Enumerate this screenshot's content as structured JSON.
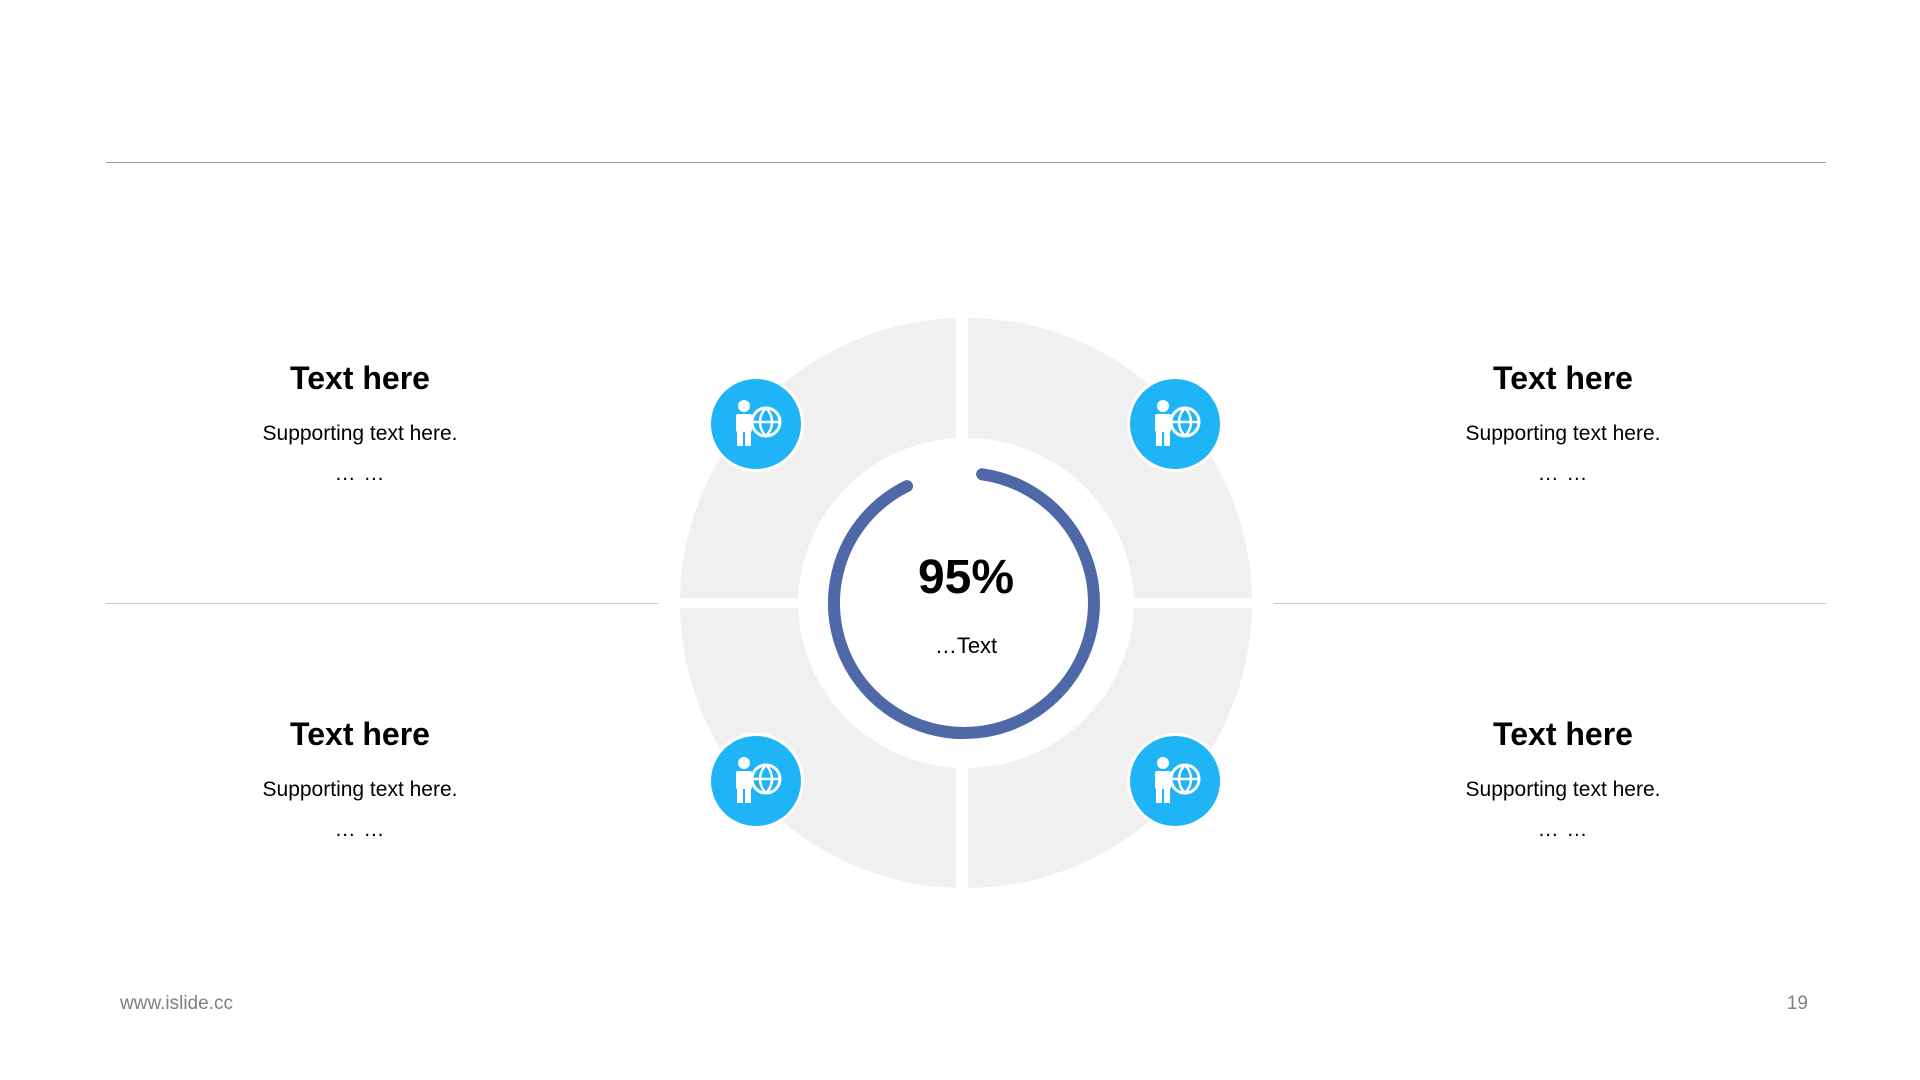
{
  "blocks": {
    "top_left": {
      "title": "Text here",
      "support": "Supporting  text here.",
      "dots": "… …"
    },
    "top_right": {
      "title": "Text here",
      "support": "Supporting  text here.",
      "dots": "… …"
    },
    "bottom_left": {
      "title": "Text here",
      "support": "Supporting  text here.",
      "dots": "… …"
    },
    "bottom_right": {
      "title": "Text here",
      "support": "Supporting  text here.",
      "dots": "… …"
    }
  },
  "center": {
    "value": "95%",
    "label": "…Text",
    "progress_fraction": 0.95
  },
  "badges": {
    "icon": "person-globe-icon",
    "color": "#1fb4f5"
  },
  "colors": {
    "ring": "#f0f0f0",
    "arc": "#4e68a8",
    "accent": "#1fb4f5"
  },
  "footer": {
    "website": "www.islide.cc",
    "page_number": "19"
  }
}
